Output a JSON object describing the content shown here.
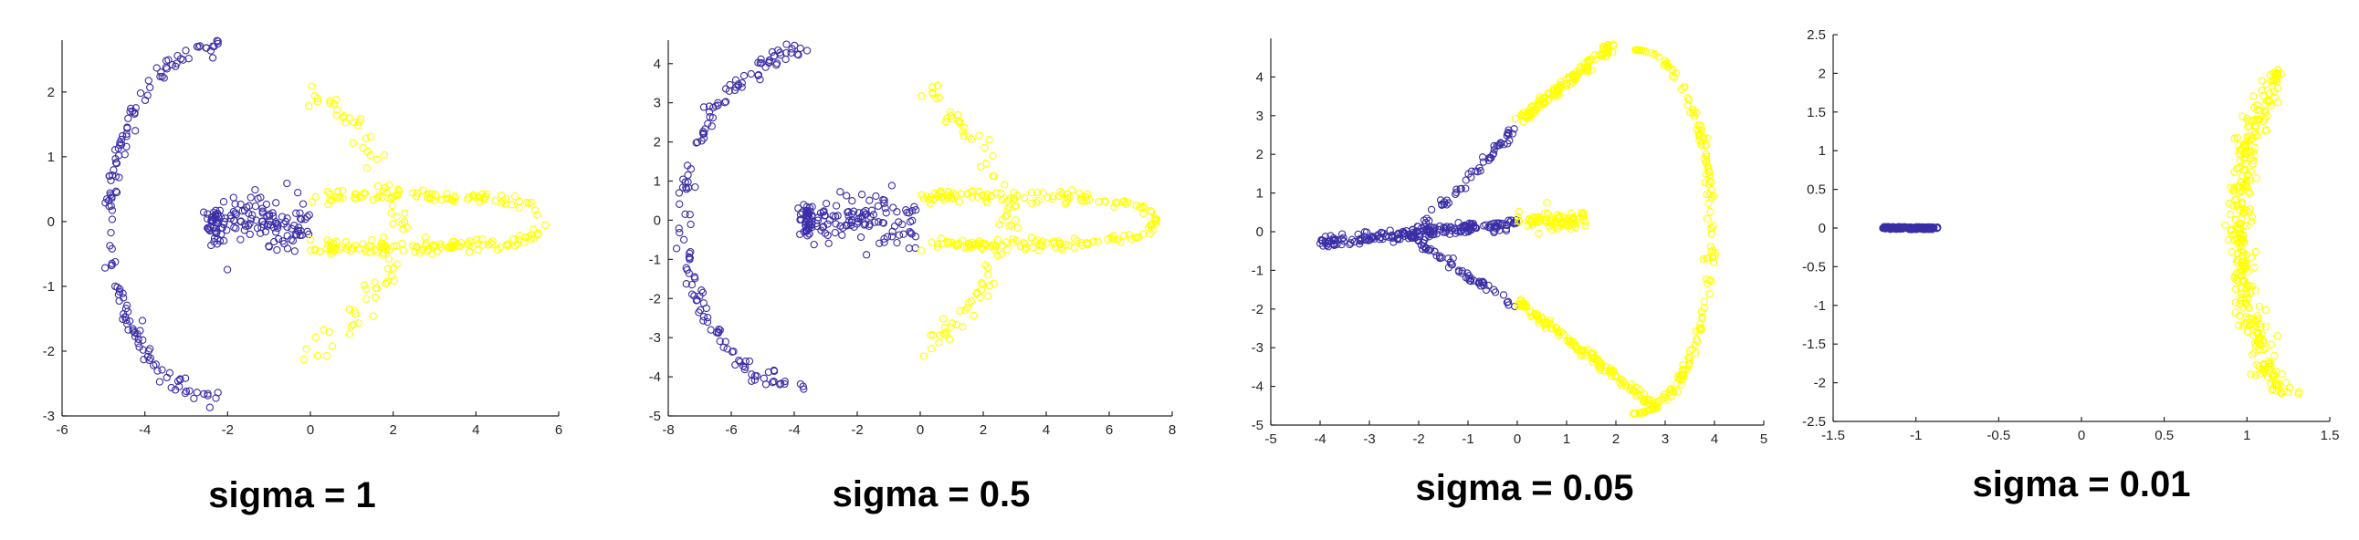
{
  "colors": {
    "class_a": "#3a2ea6",
    "class_b": "#ffff00",
    "axis": "#262626"
  },
  "chart_data": [
    {
      "type": "scatter",
      "title": "sigma = 1",
      "sigma": 1,
      "xlim": [
        -6,
        6
      ],
      "ylim": [
        -3,
        2.8
      ],
      "xticks": [
        -6,
        -4,
        -2,
        0,
        2,
        4,
        6
      ],
      "yticks": [
        -3,
        -2,
        -1,
        0,
        1,
        2
      ],
      "shape": "outer_arc_and_lobe",
      "series": [
        {
          "color": "class_a",
          "approx_points": 320
        },
        {
          "color": "class_b",
          "approx_points": 320
        }
      ]
    },
    {
      "type": "scatter",
      "title": "sigma = 0.5",
      "sigma": 0.5,
      "xlim": [
        -8,
        8
      ],
      "ylim": [
        -5,
        4.6
      ],
      "xticks": [
        -8,
        -6,
        -4,
        -2,
        0,
        2,
        4,
        6,
        8
      ],
      "yticks": [
        -5,
        -4,
        -3,
        -2,
        -1,
        0,
        1,
        2,
        3,
        4
      ],
      "shape": "outer_arc_and_lobe",
      "series": [
        {
          "color": "class_a",
          "approx_points": 320
        },
        {
          "color": "class_b",
          "approx_points": 320
        }
      ]
    },
    {
      "type": "scatter",
      "title": "sigma = 0.05",
      "sigma": 0.05,
      "xlim": [
        -5,
        5
      ],
      "ylim": [
        -5,
        5
      ],
      "xticks": [
        -5,
        -4,
        -3,
        -2,
        -1,
        0,
        1,
        2,
        3,
        4,
        5
      ],
      "yticks": [
        -5,
        -4,
        -3,
        -2,
        -1,
        0,
        1,
        2,
        3,
        4
      ],
      "shape": "fan",
      "series": [
        {
          "color": "class_a",
          "approx_points": 320
        },
        {
          "color": "class_b",
          "approx_points": 320
        }
      ]
    },
    {
      "type": "scatter",
      "title": "sigma = 0.01",
      "sigma": 0.01,
      "xlim": [
        -1.5,
        1.5
      ],
      "ylim": [
        -2.5,
        2.5
      ],
      "xticks": [
        -1.5,
        -1,
        -0.5,
        0,
        0.5,
        1,
        1.5
      ],
      "yticks": [
        -2.5,
        -2,
        -1.5,
        -1,
        -0.5,
        0,
        0.5,
        1,
        1.5,
        2,
        2.5
      ],
      "shape": "line_and_arc",
      "series": [
        {
          "color": "class_a",
          "approx_points": 320
        },
        {
          "color": "class_b",
          "approx_points": 320
        }
      ]
    }
  ]
}
